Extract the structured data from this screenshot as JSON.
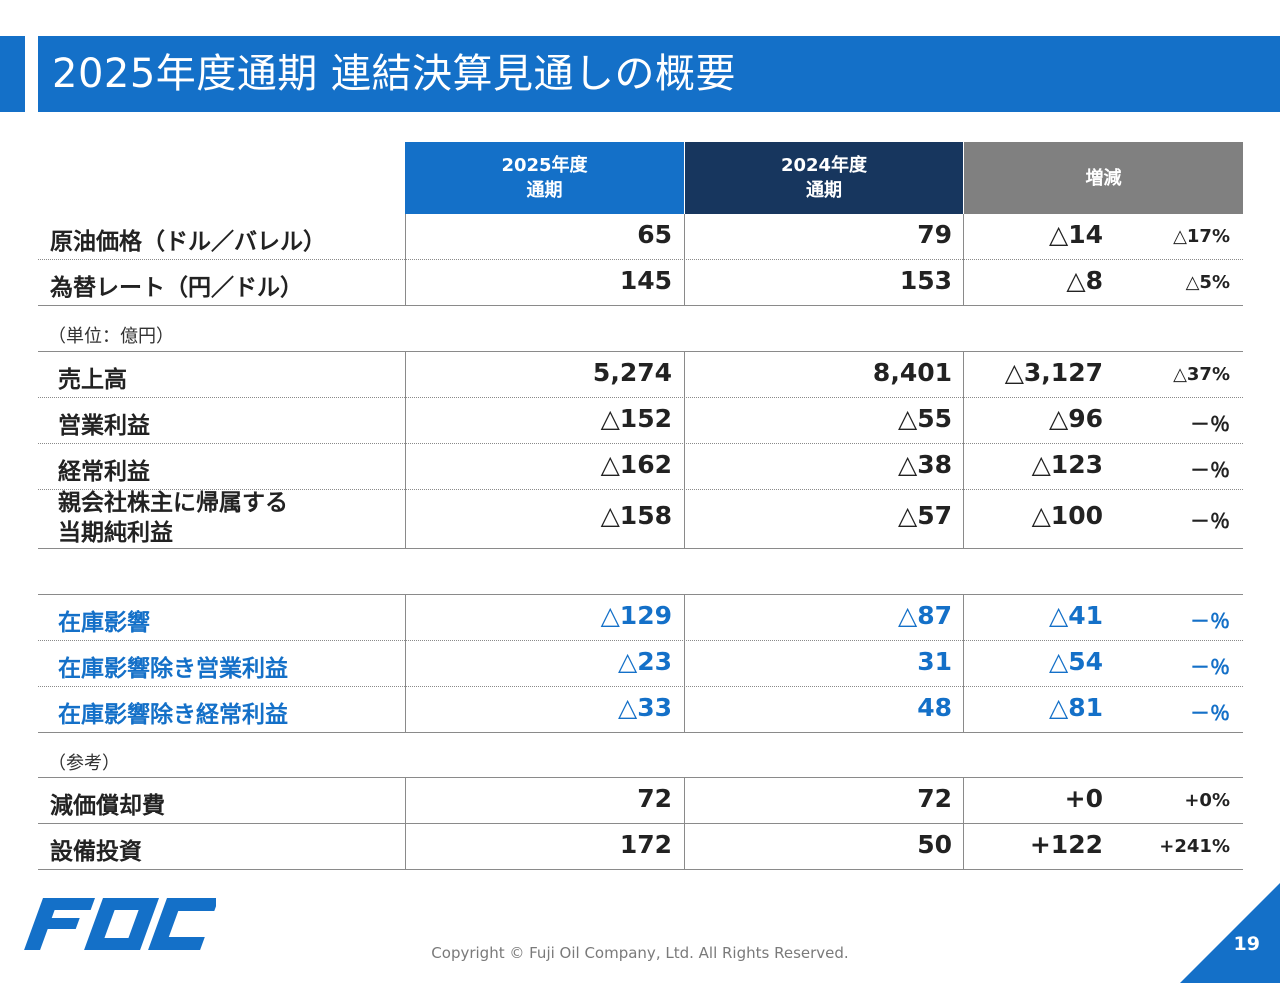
{
  "slide": {
    "title": "2025年度通期 連結決算見通しの概要",
    "page_number": "19",
    "copyright": "Copyright © Fuji Oil Company, Ltd. All Rights Reserved.",
    "logo_text": "FOC"
  },
  "columns": {
    "fy2025_line1": "2025年度",
    "fy2025_line2": "通期",
    "fy2024_line1": "2024年度",
    "fy2024_line2": "通期",
    "change": "増減"
  },
  "colors": {
    "accent": "#1470c8",
    "navy": "#17365e",
    "gray": "#808080"
  },
  "assumptions": [
    {
      "label": "原油価格（ドル／バレル）",
      "fy2025": "65",
      "fy2024": "79",
      "change": "△14",
      "pct": "△17%"
    },
    {
      "label": "為替レート（円／ドル）",
      "fy2025": "145",
      "fy2024": "153",
      "change": "△8",
      "pct": "△5%"
    }
  ],
  "unit_note": "（単位：億円）",
  "results": [
    {
      "label": "売上高",
      "fy2025": "5,274",
      "fy2024": "8,401",
      "change": "△3,127",
      "pct": "△37%"
    },
    {
      "label": "営業利益",
      "fy2025": "△152",
      "fy2024": "△55",
      "change": "△96",
      "pct": "－％"
    },
    {
      "label": "経常利益",
      "fy2025": "△162",
      "fy2024": "△38",
      "change": "△123",
      "pct": "－％"
    },
    {
      "label_line1": "親会社株主に帰属する",
      "label_line2": "当期純利益",
      "fy2025": "△158",
      "fy2024": "△57",
      "change": "△100",
      "pct": "－％"
    }
  ],
  "inventory": [
    {
      "label": "在庫影響",
      "fy2025": "△129",
      "fy2024": "△87",
      "change": "△41",
      "pct": "－％"
    },
    {
      "label": "在庫影響除き営業利益",
      "fy2025": "△23",
      "fy2024": "31",
      "change": "△54",
      "pct": "－％"
    },
    {
      "label": "在庫影響除き経常利益",
      "fy2025": "△33",
      "fy2024": "48",
      "change": "△81",
      "pct": "－％"
    }
  ],
  "reference_note": "（参考）",
  "reference": [
    {
      "label": "減価償却費",
      "fy2025": "72",
      "fy2024": "72",
      "change": "+0",
      "pct": "+0%"
    },
    {
      "label": "設備投資",
      "fy2025": "172",
      "fy2024": "50",
      "change": "+122",
      "pct": "+241%"
    }
  ]
}
